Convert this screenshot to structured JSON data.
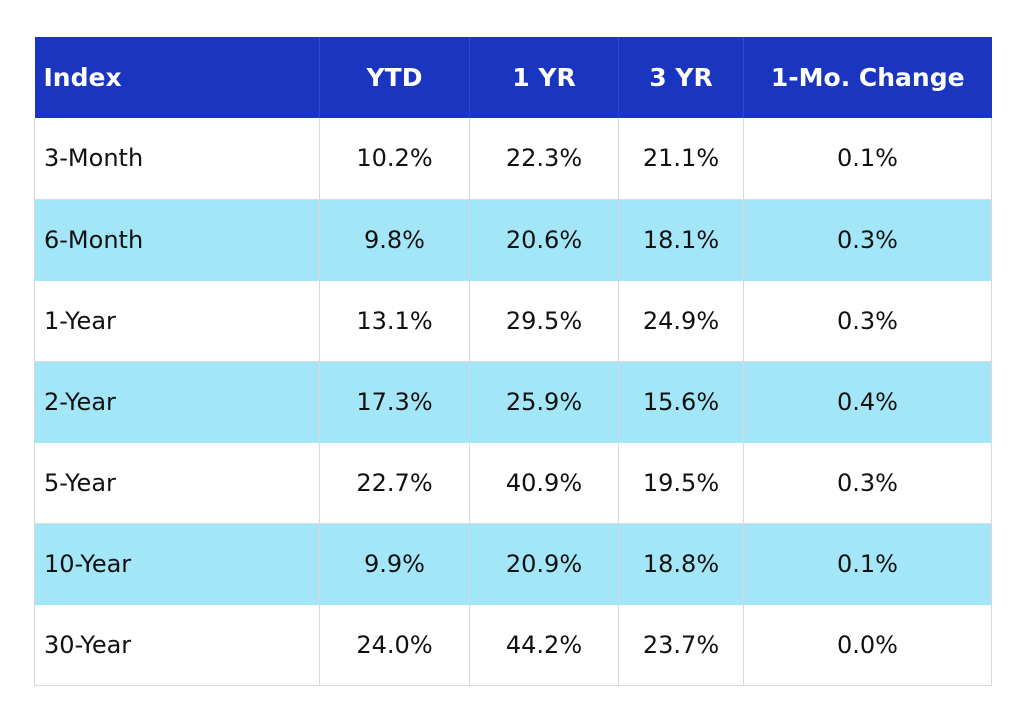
{
  "table": {
    "headers": [
      "Index",
      "YTD",
      "1 YR",
      "3 YR",
      "1-Mo. Change"
    ],
    "rows": [
      [
        "3-Month",
        "10.2%",
        "22.3%",
        "21.1%",
        "0.1%"
      ],
      [
        "6-Month",
        "9.8%",
        "20.6%",
        "18.1%",
        "0.3%"
      ],
      [
        "1-Year",
        "13.1%",
        "29.5%",
        "24.9%",
        "0.3%"
      ],
      [
        "2-Year",
        "17.3%",
        "25.9%",
        "15.6%",
        "0.4%"
      ],
      [
        "5-Year",
        "22.7%",
        "40.9%",
        "19.5%",
        "0.3%"
      ],
      [
        "10-Year",
        "9.9%",
        "20.9%",
        "18.8%",
        "0.1%"
      ],
      [
        "30-Year",
        "24.0%",
        "44.2%",
        "23.7%",
        "0.0%"
      ]
    ]
  },
  "colors": {
    "header_background": "#1a35c0",
    "header_text": "#ffffff",
    "alternate_row": "#a3e6f8",
    "row": "#ffffff"
  }
}
